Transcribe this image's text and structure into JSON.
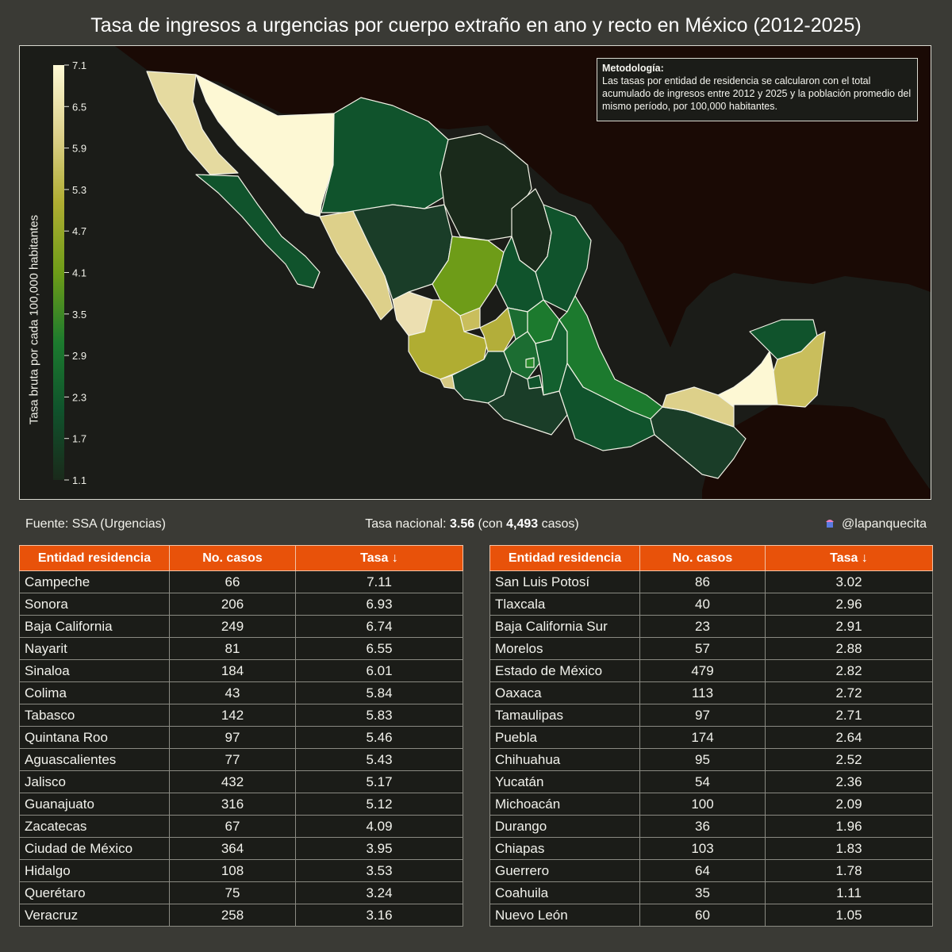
{
  "title": "Tasa de ingresos a urgencias por cuerpo extraño en ano y recto en México (2012-2025)",
  "legend": {
    "title": "Tasa bruta por cada 100,000 habitantes",
    "ticks": [
      "7.1",
      "6.5",
      "5.9",
      "5.3",
      "4.7",
      "4.1",
      "3.5",
      "2.9",
      "2.3",
      "1.7",
      "1.1"
    ],
    "min": 1.1,
    "max": 7.1
  },
  "methodology": {
    "title": "Metodología:",
    "text": "Las tasas por entidad de residencia se calcularon con el total acumulado de ingresos entre 2012 y 2025 y la población promedio del mismo período, por 100,000 habitantes."
  },
  "footer": {
    "source": "Fuente: SSA (Urgencias)",
    "national_prefix": "Tasa nacional: ",
    "national_rate": "3.56",
    "national_mid": " (con ",
    "national_cases": "4,493",
    "national_suffix": " casos)",
    "handle": "@lapanquecita"
  },
  "table_headers": [
    "Entidad residencia",
    "No. casos",
    "Tasa ↓"
  ],
  "table_left": [
    {
      "entidad": "Campeche",
      "casos": "66",
      "tasa": "7.11"
    },
    {
      "entidad": "Sonora",
      "casos": "206",
      "tasa": "6.93"
    },
    {
      "entidad": "Baja California",
      "casos": "249",
      "tasa": "6.74"
    },
    {
      "entidad": "Nayarit",
      "casos": "81",
      "tasa": "6.55"
    },
    {
      "entidad": "Sinaloa",
      "casos": "184",
      "tasa": "6.01"
    },
    {
      "entidad": "Colima",
      "casos": "43",
      "tasa": "5.84"
    },
    {
      "entidad": "Tabasco",
      "casos": "142",
      "tasa": "5.83"
    },
    {
      "entidad": "Quintana Roo",
      "casos": "97",
      "tasa": "5.46"
    },
    {
      "entidad": "Aguascalientes",
      "casos": "77",
      "tasa": "5.43"
    },
    {
      "entidad": "Jalisco",
      "casos": "432",
      "tasa": "5.17"
    },
    {
      "entidad": "Guanajuato",
      "casos": "316",
      "tasa": "5.12"
    },
    {
      "entidad": "Zacatecas",
      "casos": "67",
      "tasa": "4.09"
    },
    {
      "entidad": "Ciudad de México",
      "casos": "364",
      "tasa": "3.95"
    },
    {
      "entidad": "Hidalgo",
      "casos": "108",
      "tasa": "3.53"
    },
    {
      "entidad": "Querétaro",
      "casos": "75",
      "tasa": "3.24"
    },
    {
      "entidad": "Veracruz",
      "casos": "258",
      "tasa": "3.16"
    }
  ],
  "table_right": [
    {
      "entidad": "San Luis Potosí",
      "casos": "86",
      "tasa": "3.02"
    },
    {
      "entidad": "Tlaxcala",
      "casos": "40",
      "tasa": "2.96"
    },
    {
      "entidad": "Baja California Sur",
      "casos": "23",
      "tasa": "2.91"
    },
    {
      "entidad": "Morelos",
      "casos": "57",
      "tasa": "2.88"
    },
    {
      "entidad": "Estado de México",
      "casos": "479",
      "tasa": "2.82"
    },
    {
      "entidad": "Oaxaca",
      "casos": "113",
      "tasa": "2.72"
    },
    {
      "entidad": "Tamaulipas",
      "casos": "97",
      "tasa": "2.71"
    },
    {
      "entidad": "Puebla",
      "casos": "174",
      "tasa": "2.64"
    },
    {
      "entidad": "Chihuahua",
      "casos": "95",
      "tasa": "2.52"
    },
    {
      "entidad": "Yucatán",
      "casos": "54",
      "tasa": "2.36"
    },
    {
      "entidad": "Michoacán",
      "casos": "100",
      "tasa": "2.09"
    },
    {
      "entidad": "Durango",
      "casos": "36",
      "tasa": "1.96"
    },
    {
      "entidad": "Chiapas",
      "casos": "103",
      "tasa": "1.83"
    },
    {
      "entidad": "Guerrero",
      "casos": "64",
      "tasa": "1.78"
    },
    {
      "entidad": "Coahuila",
      "casos": "35",
      "tasa": "1.11"
    },
    {
      "entidad": "Nuevo León",
      "casos": "60",
      "tasa": "1.05"
    }
  ],
  "colors": {
    "background": "#3a3a35",
    "panel": "#1b1c18",
    "outside_land": "#1a0a05",
    "header": "#e8520a",
    "scale": [
      "#1a2a1b",
      "#10532c",
      "#1c7a2e",
      "#6e9c18",
      "#b0ad32",
      "#ddd08a",
      "#fdf8d4"
    ]
  }
}
